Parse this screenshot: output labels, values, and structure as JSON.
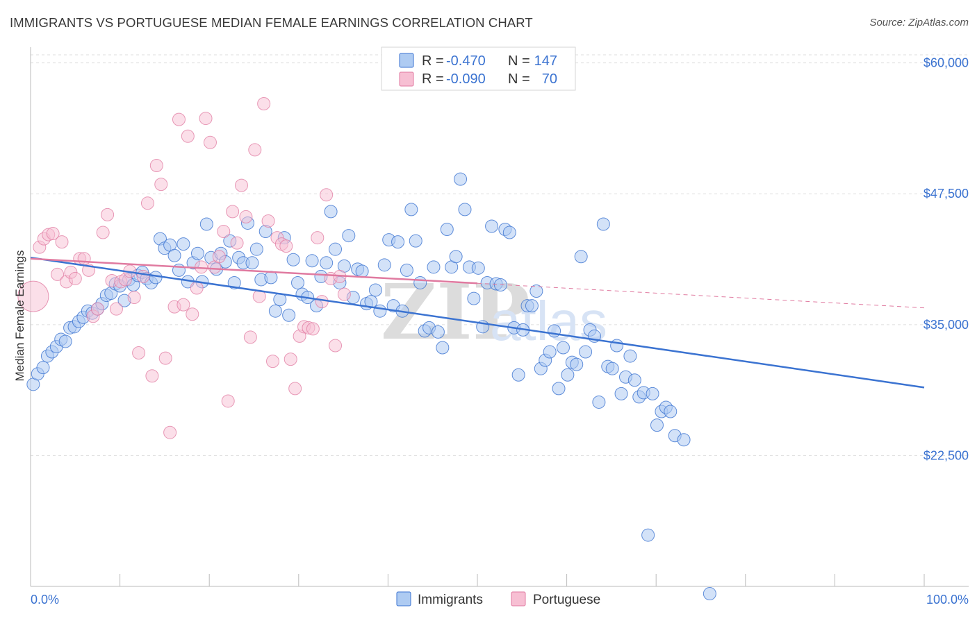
{
  "title": "IMMIGRANTS VS PORTUGUESE MEDIAN FEMALE EARNINGS CORRELATION CHART",
  "source": "Source: ZipAtlas.com",
  "colors": {
    "blue": "#3b73d1",
    "pink": "#e07aa0",
    "blue_fill": "#aecbf2",
    "pink_fill": "#f7bfd3"
  },
  "legend": {
    "r_label": "R =",
    "n_label": "N =",
    "immigrants": {
      "r": "-0.470",
      "n": "147"
    },
    "portuguese": {
      "r": "-0.090",
      "n": "70"
    }
  },
  "bottom_legend": [
    "Immigrants",
    "Portuguese"
  ],
  "watermark": {
    "zip": "ZIP",
    "atlas": "atlas"
  },
  "chart_data": {
    "type": "scatter",
    "title": "IMMIGRANTS VS PORTUGUESE MEDIAN FEMALE EARNINGS CORRELATION CHART",
    "xlabel": "",
    "ylabel": "Median Female Earnings",
    "xlim": [
      0,
      100
    ],
    "ylim": [
      10000,
      61500
    ],
    "y_ticks": [
      22500,
      35000,
      47500,
      60000
    ],
    "y_tick_labels": [
      "$22,500",
      "$35,000",
      "$47,500",
      "$60,000"
    ],
    "x_tick_labels": [
      "0.0%",
      "100.0%"
    ],
    "series": [
      {
        "name": "Immigrants",
        "color": "#3b73d1",
        "trend": {
          "x": [
            0,
            100
          ],
          "y": [
            41400,
            29000
          ]
        },
        "points": [
          [
            0.3,
            29300
          ],
          [
            0.8,
            30300
          ],
          [
            1.4,
            30900
          ],
          [
            1.9,
            32000
          ],
          [
            2.4,
            32400
          ],
          [
            2.9,
            32900
          ],
          [
            3.4,
            33600
          ],
          [
            3.9,
            33400
          ],
          [
            4.4,
            34700
          ],
          [
            4.9,
            34800
          ],
          [
            5.4,
            35300
          ],
          [
            5.9,
            35700
          ],
          [
            6.4,
            36300
          ],
          [
            6.9,
            36100
          ],
          [
            7.5,
            36500
          ],
          [
            8.0,
            37000
          ],
          [
            8.5,
            37800
          ],
          [
            9.0,
            38000
          ],
          [
            9.5,
            38900
          ],
          [
            10.0,
            38700
          ],
          [
            10.5,
            37300
          ],
          [
            11.0,
            39300
          ],
          [
            11.5,
            38800
          ],
          [
            12.0,
            39700
          ],
          [
            12.5,
            40000
          ],
          [
            13.0,
            39400
          ],
          [
            13.5,
            39000
          ],
          [
            14.0,
            39500
          ],
          [
            14.5,
            43200
          ],
          [
            15.0,
            42300
          ],
          [
            15.6,
            42600
          ],
          [
            16.1,
            41600
          ],
          [
            16.6,
            40200
          ],
          [
            17.1,
            42700
          ],
          [
            17.6,
            39100
          ],
          [
            18.2,
            40900
          ],
          [
            18.7,
            41800
          ],
          [
            19.2,
            39100
          ],
          [
            19.7,
            44600
          ],
          [
            20.2,
            41400
          ],
          [
            20.8,
            40300
          ],
          [
            21.3,
            41800
          ],
          [
            21.8,
            41000
          ],
          [
            22.3,
            43000
          ],
          [
            22.8,
            39000
          ],
          [
            23.3,
            41400
          ],
          [
            23.8,
            40900
          ],
          [
            24.3,
            44700
          ],
          [
            24.8,
            40900
          ],
          [
            25.3,
            42200
          ],
          [
            25.8,
            39300
          ],
          [
            26.3,
            43900
          ],
          [
            26.9,
            39500
          ],
          [
            27.4,
            36300
          ],
          [
            27.9,
            37400
          ],
          [
            28.4,
            43300
          ],
          [
            28.9,
            35900
          ],
          [
            29.4,
            41200
          ],
          [
            29.9,
            39000
          ],
          [
            30.4,
            37900
          ],
          [
            31.0,
            37600
          ],
          [
            31.5,
            41100
          ],
          [
            32.0,
            36800
          ],
          [
            32.5,
            39600
          ],
          [
            33.1,
            40900
          ],
          [
            33.6,
            45800
          ],
          [
            34.1,
            42200
          ],
          [
            34.6,
            39000
          ],
          [
            35.1,
            40600
          ],
          [
            35.6,
            43500
          ],
          [
            36.1,
            37600
          ],
          [
            36.6,
            40300
          ],
          [
            37.1,
            40100
          ],
          [
            37.6,
            37000
          ],
          [
            38.1,
            37200
          ],
          [
            38.6,
            38300
          ],
          [
            39.1,
            36300
          ],
          [
            39.6,
            40700
          ],
          [
            40.1,
            43100
          ],
          [
            40.6,
            36800
          ],
          [
            41.1,
            42900
          ],
          [
            41.6,
            36300
          ],
          [
            42.1,
            40200
          ],
          [
            42.6,
            46000
          ],
          [
            43.1,
            43000
          ],
          [
            43.6,
            39000
          ],
          [
            44.1,
            34400
          ],
          [
            44.6,
            34700
          ],
          [
            45.1,
            40500
          ],
          [
            45.6,
            34300
          ],
          [
            46.1,
            32800
          ],
          [
            46.6,
            44100
          ],
          [
            47.1,
            40500
          ],
          [
            47.6,
            41500
          ],
          [
            48.1,
            48900
          ],
          [
            48.6,
            46000
          ],
          [
            49.1,
            40500
          ],
          [
            49.6,
            37500
          ],
          [
            50.1,
            40400
          ],
          [
            50.6,
            34800
          ],
          [
            51.1,
            39000
          ],
          [
            51.6,
            44400
          ],
          [
            52.1,
            38900
          ],
          [
            52.6,
            38800
          ],
          [
            53.1,
            44100
          ],
          [
            53.6,
            43800
          ],
          [
            54.1,
            34700
          ],
          [
            54.6,
            30200
          ],
          [
            55.1,
            34500
          ],
          [
            55.6,
            36800
          ],
          [
            56.1,
            36800
          ],
          [
            56.6,
            38200
          ],
          [
            57.1,
            30800
          ],
          [
            57.6,
            31600
          ],
          [
            58.1,
            32400
          ],
          [
            58.6,
            34400
          ],
          [
            59.1,
            28900
          ],
          [
            59.6,
            32800
          ],
          [
            60.1,
            30200
          ],
          [
            60.6,
            31400
          ],
          [
            61.1,
            31200
          ],
          [
            61.6,
            41500
          ],
          [
            62.1,
            32400
          ],
          [
            62.6,
            34500
          ],
          [
            63.1,
            33900
          ],
          [
            63.6,
            27600
          ],
          [
            64.1,
            44600
          ],
          [
            64.6,
            31000
          ],
          [
            65.1,
            30800
          ],
          [
            65.6,
            33000
          ],
          [
            66.1,
            28400
          ],
          [
            66.6,
            30000
          ],
          [
            67.1,
            32000
          ],
          [
            67.6,
            29700
          ],
          [
            68.1,
            28100
          ],
          [
            68.6,
            28500
          ],
          [
            69.1,
            14900
          ],
          [
            69.6,
            28400
          ],
          [
            70.1,
            25400
          ],
          [
            70.6,
            26700
          ],
          [
            71.1,
            27100
          ],
          [
            71.6,
            26700
          ],
          [
            72.1,
            24400
          ],
          [
            73.1,
            24000
          ],
          [
            76.0,
            9300
          ]
        ]
      },
      {
        "name": "Portuguese",
        "color": "#e07aa0",
        "trend": {
          "x": [
            0,
            100
          ],
          "y": [
            41300,
            36600
          ]
        },
        "points": [
          [
            0.3,
            37700
          ],
          [
            1.0,
            42400
          ],
          [
            1.5,
            43200
          ],
          [
            2.0,
            43600
          ],
          [
            2.5,
            43700
          ],
          [
            3.0,
            39800
          ],
          [
            3.5,
            42900
          ],
          [
            4.0,
            39100
          ],
          [
            4.5,
            40000
          ],
          [
            5.0,
            39400
          ],
          [
            5.5,
            41300
          ],
          [
            6.0,
            41300
          ],
          [
            6.5,
            40200
          ],
          [
            7.0,
            35800
          ],
          [
            7.5,
            36500
          ],
          [
            8.1,
            43800
          ],
          [
            8.6,
            45500
          ],
          [
            9.1,
            39200
          ],
          [
            9.6,
            36500
          ],
          [
            10.1,
            39100
          ],
          [
            10.6,
            39300
          ],
          [
            11.1,
            40100
          ],
          [
            11.6,
            37600
          ],
          [
            12.1,
            32300
          ],
          [
            12.6,
            39600
          ],
          [
            13.1,
            46600
          ],
          [
            13.6,
            30100
          ],
          [
            14.1,
            50200
          ],
          [
            14.6,
            48400
          ],
          [
            15.1,
            31800
          ],
          [
            15.6,
            24700
          ],
          [
            16.1,
            36700
          ],
          [
            16.6,
            54600
          ],
          [
            17.1,
            36900
          ],
          [
            17.6,
            53000
          ],
          [
            18.1,
            36000
          ],
          [
            18.6,
            38500
          ],
          [
            19.1,
            40500
          ],
          [
            19.6,
            54700
          ],
          [
            20.1,
            52400
          ],
          [
            20.6,
            40500
          ],
          [
            21.1,
            41500
          ],
          [
            21.6,
            43900
          ],
          [
            22.1,
            27700
          ],
          [
            22.6,
            45800
          ],
          [
            23.1,
            42800
          ],
          [
            23.6,
            48300
          ],
          [
            24.1,
            45300
          ],
          [
            24.6,
            33800
          ],
          [
            25.1,
            51700
          ],
          [
            25.6,
            37700
          ],
          [
            26.1,
            56100
          ],
          [
            26.6,
            44900
          ],
          [
            27.1,
            31500
          ],
          [
            27.6,
            43300
          ],
          [
            28.1,
            42700
          ],
          [
            28.6,
            42500
          ],
          [
            29.1,
            31700
          ],
          [
            29.6,
            28900
          ],
          [
            30.1,
            33900
          ],
          [
            30.6,
            34800
          ],
          [
            31.1,
            34700
          ],
          [
            31.6,
            34600
          ],
          [
            32.1,
            43300
          ],
          [
            32.6,
            37200
          ],
          [
            33.1,
            47400
          ],
          [
            33.6,
            39400
          ],
          [
            34.1,
            33000
          ],
          [
            34.6,
            39600
          ],
          [
            35.1,
            37900
          ]
        ]
      }
    ]
  }
}
